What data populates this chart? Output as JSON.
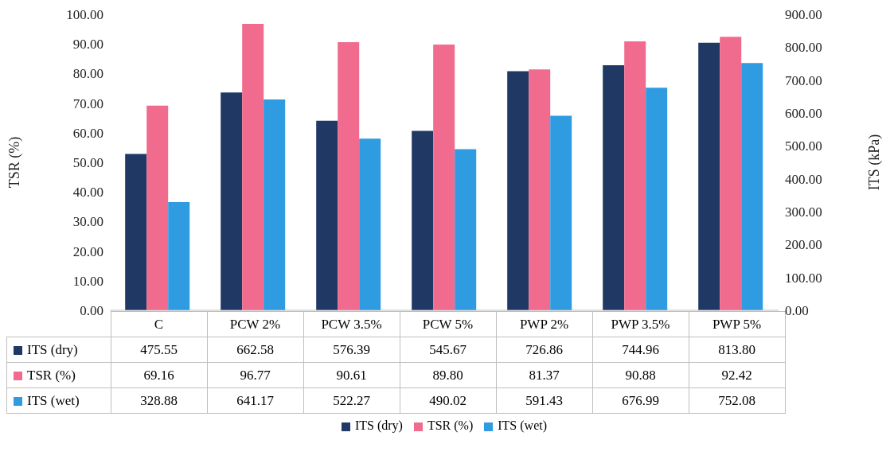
{
  "chart_data": {
    "type": "bar",
    "ylabel": "TSR (%)",
    "y2label": "ITS (kPa)",
    "categories": [
      "C",
      "PCW 2%",
      "PCW 3.5%",
      "PCW 5%",
      "PWP 2%",
      "PWP 3.5%",
      "PWP 5%"
    ],
    "series": [
      {
        "name": "ITS (dry)",
        "color": "#1f3864",
        "axis": "y2",
        "values": [
          475.55,
          662.58,
          576.39,
          545.67,
          726.86,
          744.96,
          813.8
        ],
        "value_labels": [
          "475.55",
          "662.58",
          "576.39",
          "545.67",
          "726.86",
          "744.96",
          "813.80"
        ]
      },
      {
        "name": "TSR (%)",
        "color": "#f06b8e",
        "axis": "y",
        "values": [
          69.16,
          96.77,
          90.61,
          89.8,
          81.37,
          90.88,
          92.42
        ],
        "value_labels": [
          "69.16",
          "96.77",
          "90.61",
          "89.80",
          "81.37",
          "90.88",
          "92.42"
        ]
      },
      {
        "name": "ITS (wet)",
        "color": "#2f9be0",
        "axis": "y2",
        "values": [
          328.88,
          641.17,
          522.27,
          490.02,
          591.43,
          676.99,
          752.08
        ],
        "value_labels": [
          "328.88",
          "641.17",
          "522.27",
          "490.02",
          "591.43",
          "676.99",
          "752.08"
        ]
      }
    ],
    "ylim": [
      0,
      100
    ],
    "yticks": [
      {
        "value": 0,
        "label": "0.00"
      },
      {
        "value": 10,
        "label": "10.00"
      },
      {
        "value": 20,
        "label": "20.00"
      },
      {
        "value": 30,
        "label": "30.00"
      },
      {
        "value": 40,
        "label": "40.00"
      },
      {
        "value": 50,
        "label": "50.00"
      },
      {
        "value": 60,
        "label": "60.00"
      },
      {
        "value": 70,
        "label": "70.00"
      },
      {
        "value": 80,
        "label": "80.00"
      },
      {
        "value": 90,
        "label": "90.00"
      },
      {
        "value": 100,
        "label": "100.00"
      }
    ],
    "y2lim": [
      0,
      900
    ],
    "y2ticks": [
      {
        "value": 0,
        "label": "0.00"
      },
      {
        "value": 100,
        "label": "100.00"
      },
      {
        "value": 200,
        "label": "200.00"
      },
      {
        "value": 300,
        "label": "300.00"
      },
      {
        "value": 400,
        "label": "400.00"
      },
      {
        "value": 500,
        "label": "500.00"
      },
      {
        "value": 600,
        "label": "600.00"
      },
      {
        "value": 700,
        "label": "700.00"
      },
      {
        "value": 800,
        "label": "800.00"
      },
      {
        "value": 900,
        "label": "900.00"
      }
    ],
    "legend": "bottom"
  }
}
